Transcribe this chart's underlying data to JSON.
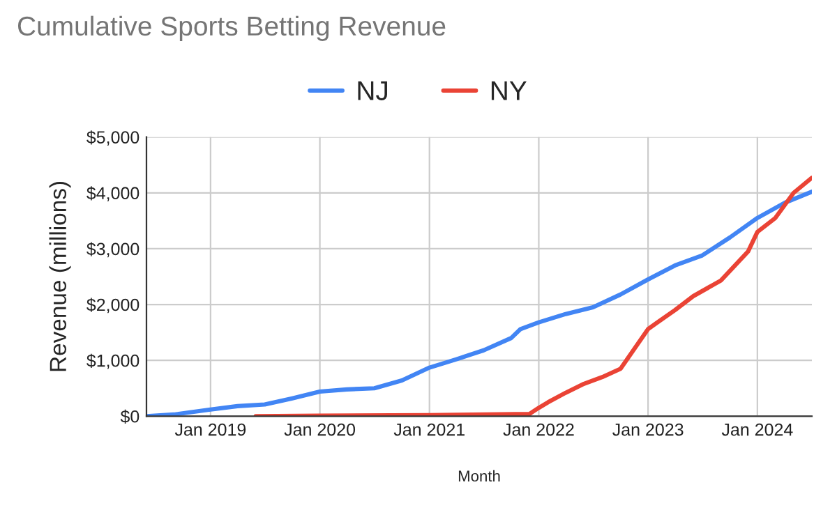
{
  "chart_data": {
    "type": "line",
    "title": "Cumulative Sports Betting Revenue",
    "xlabel": "Month",
    "ylabel": "Revenue (millions)",
    "xlim": [
      "2018-06",
      "2024-07"
    ],
    "xticks": [
      {
        "value": "2019-01",
        "label": "Jan 2019"
      },
      {
        "value": "2020-01",
        "label": "Jan 2020"
      },
      {
        "value": "2021-01",
        "label": "Jan 2021"
      },
      {
        "value": "2022-01",
        "label": "Jan 2022"
      },
      {
        "value": "2023-01",
        "label": "Jan 2023"
      },
      {
        "value": "2024-01",
        "label": "Jan 2024"
      }
    ],
    "ylim": [
      0,
      5000
    ],
    "yticks": [
      {
        "value": 0,
        "label": "$0"
      },
      {
        "value": 1000,
        "label": "$1,000"
      },
      {
        "value": 2000,
        "label": "$2,000"
      },
      {
        "value": 3000,
        "label": "$3,000"
      },
      {
        "value": 4000,
        "label": "$4,000"
      },
      {
        "value": 5000,
        "label": "$5,000"
      }
    ],
    "grid": true,
    "legend": "top",
    "marker": "none",
    "line_style": "solid",
    "series": [
      {
        "name": "NJ",
        "color": "#4285f4",
        "x": [
          "2018-06",
          "2018-09",
          "2019-01",
          "2019-04",
          "2019-07",
          "2019-10",
          "2020-01",
          "2020-04",
          "2020-07",
          "2020-10",
          "2021-01",
          "2021-04",
          "2021-07",
          "2021-10",
          "2021-11",
          "2022-01",
          "2022-04",
          "2022-07",
          "2022-10",
          "2023-01",
          "2023-04",
          "2023-07",
          "2023-10",
          "2024-01",
          "2024-04",
          "2024-07"
        ],
        "values": [
          0,
          30,
          120,
          180,
          210,
          320,
          440,
          480,
          500,
          640,
          870,
          1020,
          1180,
          1400,
          1560,
          1680,
          1830,
          1950,
          2180,
          2450,
          2700,
          2880,
          3200,
          3550,
          3820,
          4020
        ]
      },
      {
        "name": "NY",
        "color": "#ea4335",
        "x": [
          "2019-06",
          "2020-01",
          "2021-01",
          "2021-12",
          "2022-01",
          "2022-02",
          "2022-04",
          "2022-06",
          "2022-08",
          "2022-10",
          "2023-01",
          "2023-02",
          "2023-04",
          "2023-06",
          "2023-09",
          "2023-12",
          "2024-01",
          "2024-03",
          "2024-05",
          "2024-07"
        ],
        "values": [
          0,
          10,
          20,
          40,
          150,
          250,
          420,
          580,
          700,
          850,
          1560,
          1680,
          1900,
          2150,
          2430,
          2950,
          3300,
          3550,
          4000,
          4270
        ]
      }
    ]
  }
}
